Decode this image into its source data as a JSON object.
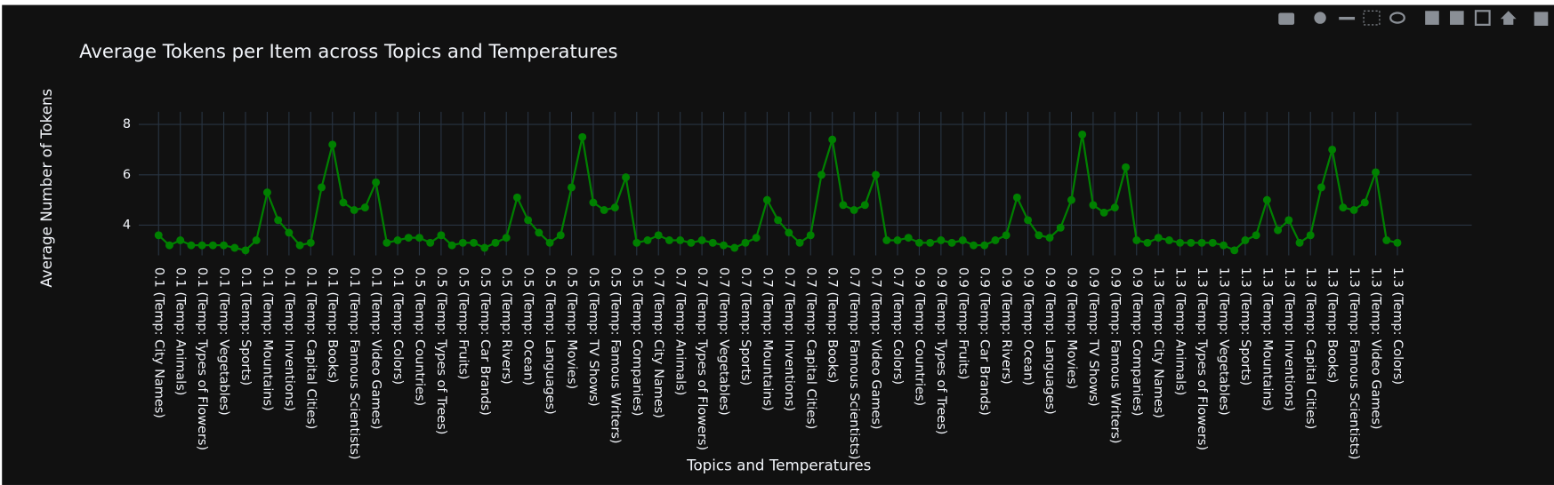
{
  "chart_data": {
    "type": "line",
    "title": "Average Tokens per Item across Topics and Temperatures",
    "x_label": "Topics and Temperatures",
    "y_label": "Average Number of Tokens",
    "color": "#008000",
    "grid": true,
    "ylim": [
      2.8,
      8.5
    ],
    "yticks": [
      4,
      6,
      8
    ],
    "categories": [
      "0.1 (Temp: City Names)",
      null,
      "0.1 (Temp: Animals)",
      null,
      "0.1 (Temp: Types of Flowers)",
      null,
      "0.1 (Temp: Vegetables)",
      null,
      "0.1 (Temp: Sports)",
      null,
      "0.1 (Temp: Mountains)",
      null,
      "0.1 (Temp: Inventions)",
      null,
      "0.1 (Temp: Capital Cities)",
      null,
      "0.1 (Temp: Books)",
      null,
      "0.1 (Temp: Famous Scientists)",
      null,
      "0.1 (Temp: Video Games)",
      null,
      "0.1 (Temp: Colors)",
      null,
      "0.5 (Temp: Countries)",
      null,
      "0.5 (Temp: Types of Trees)",
      null,
      "0.5 (Temp: Fruits)",
      null,
      "0.5 (Temp: Car Brands)",
      null,
      "0.5 (Temp: Rivers)",
      null,
      "0.5 (Temp: Ocean)",
      null,
      "0.5 (Temp: Languages)",
      null,
      "0.5 (Temp: Movies)",
      null,
      "0.5 (Temp: TV Shows)",
      null,
      "0.5 (Temp: Famous Writers)",
      null,
      "0.5 (Temp: Companies)",
      null,
      "0.7 (Temp: City Names)",
      null,
      "0.7 (Temp: Animals)",
      null,
      "0.7 (Temp: Types of Flowers)",
      null,
      "0.7 (Temp: Vegetables)",
      null,
      "0.7 (Temp: Sports)",
      null,
      "0.7 (Temp: Mountains)",
      null,
      "0.7 (Temp: Inventions)",
      null,
      "0.7 (Temp: Capital Cities)",
      null,
      "0.7 (Temp: Books)",
      null,
      "0.7 (Temp: Famous Scientists)",
      null,
      "0.7 (Temp: Video Games)",
      null,
      "0.7 (Temp: Colors)",
      null,
      "0.9 (Temp: Countries)",
      null,
      "0.9 (Temp: Types of Trees)",
      null,
      "0.9 (Temp: Fruits)",
      null,
      "0.9 (Temp: Car Brands)",
      null,
      "0.9 (Temp: Rivers)",
      null,
      "0.9 (Temp: Ocean)",
      null,
      "0.9 (Temp: Languages)",
      null,
      "0.9 (Temp: Movies)",
      null,
      "0.9 (Temp: TV Shows)",
      null,
      "0.9 (Temp: Famous Writers)",
      null,
      "0.9 (Temp: Companies)",
      null,
      "1.3 (Temp: City Names)",
      null,
      "1.3 (Temp: Animals)",
      null,
      "1.3 (Temp: Types of Flowers)",
      null,
      "1.3 (Temp: Vegetables)",
      null,
      "1.3 (Temp: Sports)",
      null,
      "1.3 (Temp: Mountains)",
      null,
      "1.3 (Temp: Inventions)",
      null,
      "1.3 (Temp: Capital Cities)",
      null,
      "1.3 (Temp: Books)",
      null,
      "1.3 (Temp: Famous Scientists)",
      null,
      "1.3 (Temp: Video Games)",
      null,
      "1.3 (Temp: Colors)"
    ],
    "values": [
      3.6,
      3.2,
      3.4,
      3.2,
      3.2,
      3.2,
      3.2,
      3.1,
      3.0,
      3.4,
      5.3,
      4.2,
      3.7,
      3.2,
      3.3,
      5.5,
      7.2,
      4.9,
      4.6,
      4.7,
      5.7,
      3.3,
      3.4,
      3.5,
      3.5,
      3.3,
      3.6,
      3.2,
      3.3,
      3.3,
      3.1,
      3.3,
      3.5,
      5.1,
      4.2,
      3.7,
      3.3,
      3.6,
      5.5,
      7.5,
      4.9,
      4.6,
      4.7,
      5.9,
      3.3,
      3.4,
      3.6,
      3.4,
      3.4,
      3.3,
      3.4,
      3.3,
      3.2,
      3.1,
      3.3,
      3.5,
      5.0,
      4.2,
      3.7,
      3.3,
      3.6,
      6.0,
      7.4,
      4.8,
      4.6,
      4.8,
      6.0,
      3.4,
      3.4,
      3.5,
      3.3,
      3.3,
      3.4,
      3.3,
      3.4,
      3.2,
      3.2,
      3.4,
      3.6,
      5.1,
      4.2,
      3.6,
      3.5,
      3.9,
      5.0,
      7.6,
      4.8,
      4.5,
      4.7,
      6.3,
      3.4,
      3.3,
      3.5,
      3.4,
      3.3,
      3.3,
      3.3,
      3.3,
      3.2,
      3.0,
      3.4,
      3.6,
      5.0,
      3.8,
      4.2,
      3.3,
      3.6,
      5.5,
      7.0,
      4.7,
      4.6,
      4.9,
      6.1,
      3.4,
      3.3
    ]
  }
}
